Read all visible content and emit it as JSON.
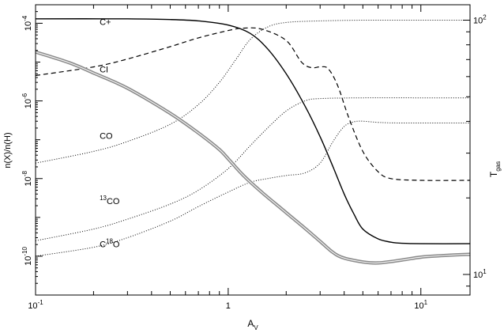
{
  "chart_data": {
    "type": "line",
    "xlabel": "A",
    "xlabel_sub": "V",
    "ylabel": "n(X)/n(H)",
    "y2label": "T",
    "y2label_sub": "gas",
    "xscale": "log",
    "yscale": "log",
    "y2scale": "log",
    "xlim": [
      0.1,
      18
    ],
    "ylim": [
      1e-11,
      0.0003
    ],
    "y2lim": [
      8.3,
      115
    ],
    "grid": false,
    "legend": "none",
    "x_ticks": [
      {
        "value": 0.1,
        "base": "10",
        "exp": "-1"
      },
      {
        "value": 1,
        "base": "1",
        "exp": ""
      },
      {
        "value": 10,
        "base": "10",
        "exp": "1"
      }
    ],
    "y_ticks": [
      {
        "value": 0.0001,
        "base": "10",
        "exp": "-4"
      },
      {
        "value": 1e-06,
        "base": "10",
        "exp": "-6"
      },
      {
        "value": 1e-08,
        "base": "10",
        "exp": "-8"
      },
      {
        "value": 1e-10,
        "base": "10",
        "exp": "-10"
      }
    ],
    "y2_ticks": [
      {
        "value": 100,
        "base": "10",
        "exp": "2"
      },
      {
        "value": 10,
        "base": "10",
        "exp": "1"
      }
    ],
    "series": [
      {
        "name": "C+",
        "label_sup": "",
        "label_main": "C+",
        "label_rest": "",
        "style": "solid",
        "axis": "left",
        "label_at": [
          0.215,
          9e-05
        ],
        "points": [
          [
            0.1,
            0.00013
          ],
          [
            0.3,
            0.00013
          ],
          [
            0.5,
            0.000125
          ],
          [
            0.7,
            0.000115
          ],
          [
            1.0,
            9e-05
          ],
          [
            1.3,
            5.5e-05
          ],
          [
            1.6,
            2.2e-05
          ],
          [
            2.0,
            5e-06
          ],
          [
            2.5,
            7.5e-07
          ],
          [
            3.0,
            1.2e-07
          ],
          [
            3.5,
            2e-08
          ],
          [
            4.0,
            4e-09
          ],
          [
            4.5,
            1.2e-09
          ],
          [
            5.0,
            5e-10
          ],
          [
            6.0,
            2.8e-10
          ],
          [
            7.0,
            2.3e-10
          ],
          [
            8.0,
            2.15e-10
          ],
          [
            10.0,
            2.1e-10
          ],
          [
            18.0,
            2.1e-10
          ]
        ]
      },
      {
        "name": "CI",
        "label_sup": "",
        "label_main": "CI",
        "label_rest": "",
        "style": "dashed",
        "axis": "left",
        "label_at": [
          0.215,
          5.4e-06
        ],
        "points": [
          [
            0.1,
            4.5e-06
          ],
          [
            0.2,
            7.5e-06
          ],
          [
            0.3,
            1.2e-05
          ],
          [
            0.5,
            2.5e-05
          ],
          [
            0.7,
            4.2e-05
          ],
          [
            1.0,
            6.5e-05
          ],
          [
            1.2,
            7.5e-05
          ],
          [
            1.5,
            7e-05
          ],
          [
            2.0,
            3.6e-05
          ],
          [
            2.4,
            1e-05
          ],
          [
            2.7,
            7.2e-06
          ],
          [
            3.0,
            7.5e-06
          ],
          [
            3.3,
            6.8e-06
          ],
          [
            3.7,
            2.5e-06
          ],
          [
            4.2,
            4e-07
          ],
          [
            5.0,
            5e-08
          ],
          [
            6.0,
            1.5e-08
          ],
          [
            7.0,
            1e-08
          ],
          [
            10.0,
            9e-09
          ],
          [
            18.0,
            9e-09
          ]
        ]
      },
      {
        "name": "CO",
        "label_sup": "",
        "label_main": "CO",
        "label_rest": "",
        "style": "dotted",
        "axis": "left",
        "label_at": [
          0.215,
          1.05e-07
        ],
        "points": [
          [
            0.1,
            2.5e-08
          ],
          [
            0.2,
            5e-08
          ],
          [
            0.3,
            9e-08
          ],
          [
            0.5,
            2.5e-07
          ],
          [
            0.7,
            8e-07
          ],
          [
            0.9,
            3e-06
          ],
          [
            1.1,
            1.2e-05
          ],
          [
            1.3,
            3.8e-05
          ],
          [
            1.6,
            8e-05
          ],
          [
            2.0,
            0.000105
          ],
          [
            3.0,
            0.000115
          ],
          [
            5.0,
            0.00012
          ],
          [
            10.0,
            0.00012
          ],
          [
            18.0,
            0.00012
          ]
        ]
      },
      {
        "name": "13CO",
        "label_sup": "13",
        "label_main": "CO",
        "label_rest": "",
        "style": "dotted",
        "axis": "left",
        "label_at": [
          0.215,
          2.2e-09
        ],
        "points": [
          [
            0.1,
            2.5e-10
          ],
          [
            0.2,
            5e-10
          ],
          [
            0.3,
            9e-10
          ],
          [
            0.5,
            2.2e-09
          ],
          [
            0.7,
            5e-09
          ],
          [
            1.0,
            1.8e-08
          ],
          [
            1.3,
            7e-08
          ],
          [
            1.6,
            2e-07
          ],
          [
            2.0,
            5.5e-07
          ],
          [
            2.5,
            1e-06
          ],
          [
            3.0,
            1.15e-06
          ],
          [
            5.0,
            1.2e-06
          ],
          [
            10.0,
            1.2e-06
          ],
          [
            18.0,
            1.2e-06
          ]
        ]
      },
      {
        "name": "C18O",
        "label_sup": "18",
        "label_main": "C",
        "label_rest": "O",
        "style": "dotted",
        "axis": "left",
        "label_at": [
          0.215,
          1.7e-10
        ],
        "points": [
          [
            0.1,
            1e-10
          ],
          [
            0.2,
            1.7e-10
          ],
          [
            0.3,
            3e-10
          ],
          [
            0.5,
            8e-10
          ],
          [
            0.7,
            1.9e-09
          ],
          [
            1.0,
            4.5e-09
          ],
          [
            1.3,
            8e-09
          ],
          [
            1.6,
            1e-08
          ],
          [
            2.0,
            1.2e-08
          ],
          [
            2.5,
            1.4e-08
          ],
          [
            3.0,
            2.5e-08
          ],
          [
            3.5,
            9e-08
          ],
          [
            4.0,
            2.2e-07
          ],
          [
            4.5,
            2.9e-07
          ],
          [
            5.0,
            3e-07
          ],
          [
            6.0,
            2.8e-07
          ],
          [
            8.0,
            2.7e-07
          ],
          [
            18.0,
            2.7e-07
          ]
        ]
      },
      {
        "name": "Tgas",
        "label_sup": "",
        "label_main": "",
        "label_rest": "",
        "style": "double",
        "axis": "right",
        "points": [
          [
            0.1,
            75
          ],
          [
            0.15,
            68
          ],
          [
            0.2,
            62
          ],
          [
            0.3,
            54
          ],
          [
            0.5,
            43
          ],
          [
            0.7,
            36
          ],
          [
            0.9,
            31
          ],
          [
            1.0,
            28.5
          ],
          [
            1.2,
            24.5
          ],
          [
            1.5,
            21
          ],
          [
            2.0,
            17.5
          ],
          [
            2.5,
            15.2
          ],
          [
            3.0,
            13.5
          ],
          [
            3.5,
            12.2
          ],
          [
            4.0,
            11.6
          ],
          [
            5.0,
            11.2
          ],
          [
            6.0,
            11.1
          ],
          [
            8.0,
            11.4
          ],
          [
            10.0,
            11.7
          ],
          [
            14.0,
            11.9
          ],
          [
            18.0,
            12.0
          ]
        ]
      }
    ]
  }
}
